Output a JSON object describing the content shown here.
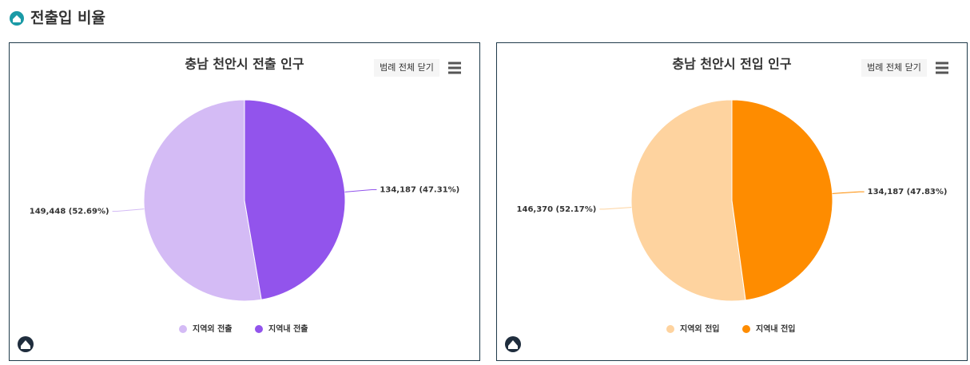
{
  "header": {
    "title": "전출입 비율"
  },
  "legend_toggle": "범례 전체 닫기",
  "chart_data": [
    {
      "type": "pie",
      "title": "충남 천안시 전출 인구",
      "categories": [
        "지역외 전출",
        "지역내 전출"
      ],
      "values": [
        149448,
        134187
      ],
      "value_labels": [
        "149,448 (52.69%)",
        "134,187 (47.31%)"
      ],
      "colors": [
        "#d4bbf5",
        "#9254ec"
      ],
      "legend": "bottom"
    },
    {
      "type": "pie",
      "title": "충남 천안시 전입 인구",
      "categories": [
        "지역외 전입",
        "지역내 전입"
      ],
      "values": [
        146370,
        134187
      ],
      "value_labels": [
        "146,370 (52.17%)",
        "134,187 (47.83%)"
      ],
      "colors": [
        "#fed39f",
        "#fe8c00"
      ],
      "legend": "bottom"
    }
  ]
}
